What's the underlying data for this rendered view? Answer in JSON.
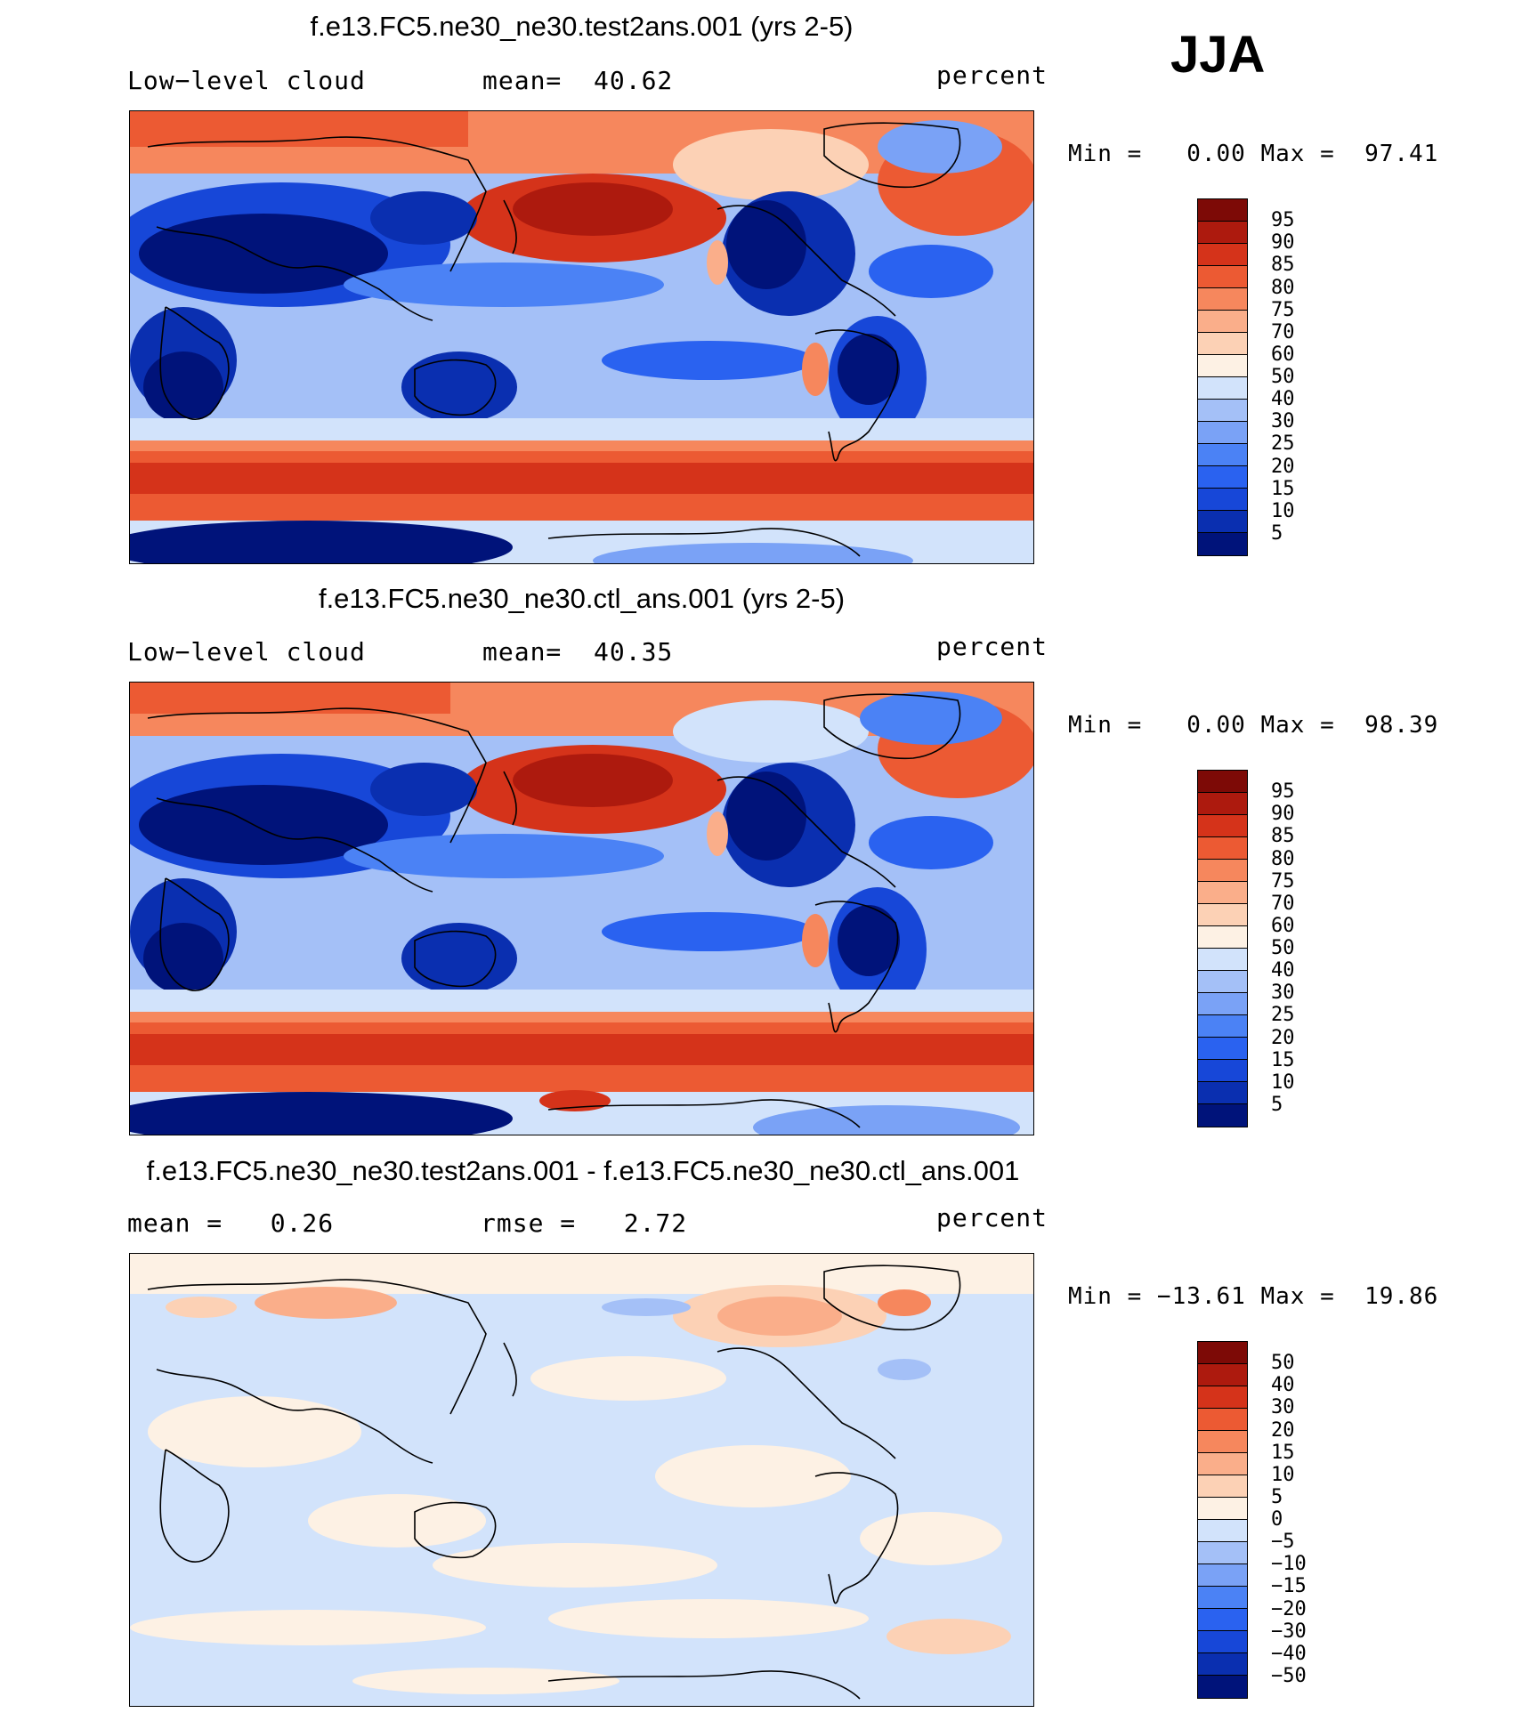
{
  "season": "JJA",
  "palette_abs": [
    "#00137a",
    "#0a2fb0",
    "#1747d8",
    "#2a62f0",
    "#4b82f5",
    "#7aa2f6",
    "#a4c0f7",
    "#d2e3fb",
    "#fdf1e4",
    "#fcd1b5",
    "#faae8a",
    "#f6875d",
    "#ec5a33",
    "#d5331a",
    "#ad1a0e",
    "#7d0a06"
  ],
  "palette_diff": [
    "#00137a",
    "#0a2fb0",
    "#1747d8",
    "#2a62f0",
    "#4b82f5",
    "#7aa2f6",
    "#a4c0f7",
    "#d2e3fb",
    "#fdf1e4",
    "#fcd1b5",
    "#faae8a",
    "#f6875d",
    "#ec5a33",
    "#d5331a",
    "#ad1a0e",
    "#7d0a06"
  ],
  "panels": [
    {
      "title": "f.e13.FC5.ne30_ne30.test2ans.001 (yrs 2-5)",
      "field": "Low−level cloud",
      "stat": "mean=  40.62",
      "units": "percent",
      "minmax": "Min =   0.00 Max =  97.41",
      "cbar_labels": [
        "95",
        "90",
        "85",
        "80",
        "75",
        "70",
        "60",
        "50",
        "40",
        "30",
        "25",
        "20",
        "15",
        "10",
        "5"
      ]
    },
    {
      "title": "f.e13.FC5.ne30_ne30.ctl_ans.001 (yrs 2-5)",
      "field": "Low−level cloud",
      "stat": "mean=  40.35",
      "units": "percent",
      "minmax": "Min =   0.00 Max =  98.39",
      "cbar_labels": [
        "95",
        "90",
        "85",
        "80",
        "75",
        "70",
        "60",
        "50",
        "40",
        "30",
        "25",
        "20",
        "15",
        "10",
        "5"
      ]
    },
    {
      "title": "f.e13.FC5.ne30_ne30.test2ans.001 - f.e13.FC5.ne30_ne30.ctl_ans.001",
      "field": "mean =   0.26",
      "stat": "rmse =   2.72",
      "units": "percent",
      "minmax": "Min = −13.61 Max =  19.86",
      "cbar_labels": [
        "50",
        "40",
        "30",
        "20",
        "15",
        "10",
        "5",
        "0",
        "−5",
        "−10",
        "−15",
        "−20",
        "−30",
        "−40",
        "−50"
      ]
    }
  ]
}
